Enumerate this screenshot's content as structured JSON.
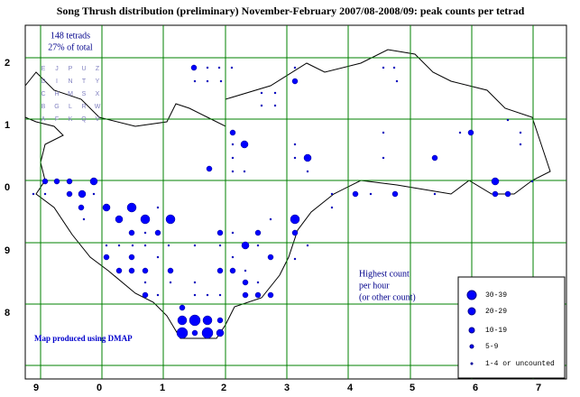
{
  "title": "Song Thrush distribution (preliminary) November-February 2007/08-2008/09: peak counts per tetrad",
  "tetrads_note": [
    "148 tetrads",
    "27% of total"
  ],
  "letter_grid": [
    [
      "E",
      "J",
      "P",
      "U",
      "Z"
    ],
    [
      "D",
      "I",
      "N",
      "T",
      "Y"
    ],
    [
      "C",
      "H",
      "M",
      "S",
      "X"
    ],
    [
      "B",
      "G",
      "L",
      "R",
      "W"
    ],
    [
      "A",
      "F",
      "K",
      "Q",
      "V"
    ]
  ],
  "x_labels": [
    "9",
    "0",
    "1",
    "2",
    "3",
    "4",
    "5",
    "6",
    "7"
  ],
  "y_labels": [
    "2",
    "1",
    "0",
    "9",
    "8"
  ],
  "annotation": [
    "Highest count",
    "per hour",
    "(or other count)"
  ],
  "legend": [
    "30-39",
    "20-29",
    "10-19",
    "5-9",
    "1-4 or uncounted"
  ],
  "credit": "Map produced using DMAP"
}
